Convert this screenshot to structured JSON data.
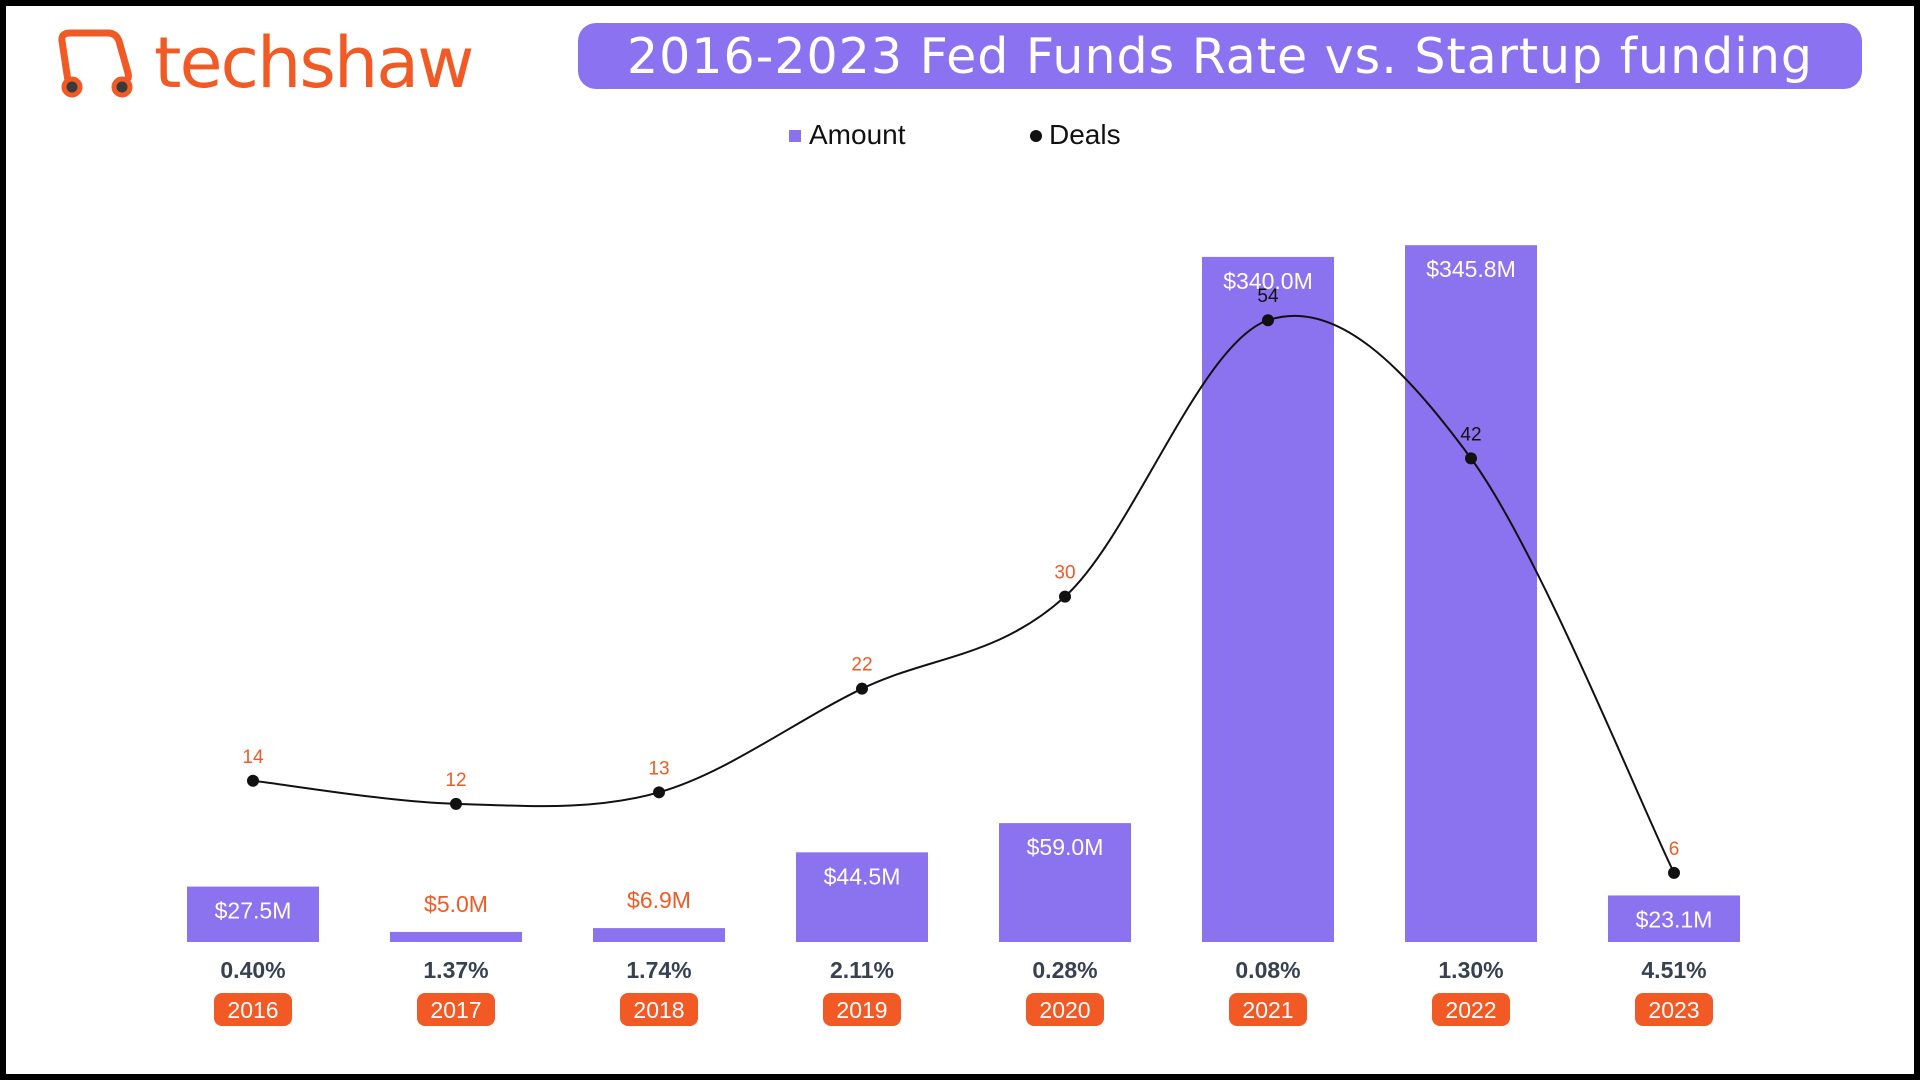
{
  "brand": {
    "name": "techshaw",
    "color": "#f15a24",
    "icon": "rickshaw-icon"
  },
  "header": {
    "title": "2016-2023 Fed Funds Rate vs. Startup funding"
  },
  "legend": {
    "amount_label": "Amount",
    "deals_label": "Deals",
    "placement": "top-center"
  },
  "colors": {
    "bar": "#8b72ef",
    "line": "#111111",
    "deal_label": "#f15a24",
    "year_badge": "#f15a24",
    "rate_text": "#374151",
    "title_bg": "#8a72f0"
  },
  "chart_data": {
    "type": "bar",
    "title": "2016-2023 Fed Funds Rate vs. Startup funding",
    "categories": [
      "2016",
      "2017",
      "2018",
      "2019",
      "2020",
      "2021",
      "2022",
      "2023"
    ],
    "series": [
      {
        "name": "Amount",
        "type": "bar",
        "values": [
          27.5,
          5.0,
          6.9,
          44.5,
          59.0,
          340.0,
          345.8,
          23.1
        ],
        "labels": [
          "$27.5M",
          "$5.0M",
          "$6.9M",
          "$44.5M",
          "$59.0M",
          "$340.0M",
          "$345.8M",
          "$23.1M"
        ]
      },
      {
        "name": "Deals",
        "type": "line",
        "values": [
          14,
          12,
          13,
          22,
          30,
          54,
          42,
          6
        ]
      }
    ],
    "fed_funds_rate": [
      "0.40%",
      "1.37%",
      "1.74%",
      "2.11%",
      "0.28%",
      "0.08%",
      "1.30%",
      "4.51%"
    ],
    "amount_ylim": [
      0,
      400
    ],
    "deals_ylim": [
      0,
      70
    ],
    "grid": false,
    "xlabel": "",
    "ylabel": ""
  }
}
